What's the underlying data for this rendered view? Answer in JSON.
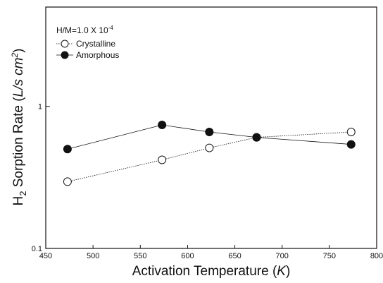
{
  "chart_data": {
    "type": "line",
    "x_label": [
      "Activation Temperature (",
      "K",
      ")"
    ],
    "y_label": [
      "H",
      "2",
      " Sorption Rate (",
      "L/s cm",
      "2",
      ")"
    ],
    "annotation": [
      "H/M=1.0 X 10",
      "-4"
    ],
    "x": [
      473,
      573,
      623,
      673,
      773
    ],
    "series": [
      {
        "name": "Crystalline",
        "color": "#111111",
        "marker_fill": "#ffffff",
        "line_style": "dotted",
        "values": [
          0.295,
          0.42,
          0.51,
          0.605,
          0.66
        ]
      },
      {
        "name": "Amorphous",
        "color": "#111111",
        "marker_fill": "#111111",
        "line_style": "solid",
        "values": [
          0.5,
          0.74,
          0.66,
          0.605,
          0.54
        ]
      }
    ],
    "xlim": [
      450,
      800
    ],
    "xticks": [
      450,
      500,
      550,
      600,
      650,
      700,
      750,
      800
    ],
    "ylim": [
      0.1,
      5
    ],
    "yticks": [
      0.1,
      1
    ],
    "y_log": true,
    "grid": false,
    "legend": "upper left"
  }
}
